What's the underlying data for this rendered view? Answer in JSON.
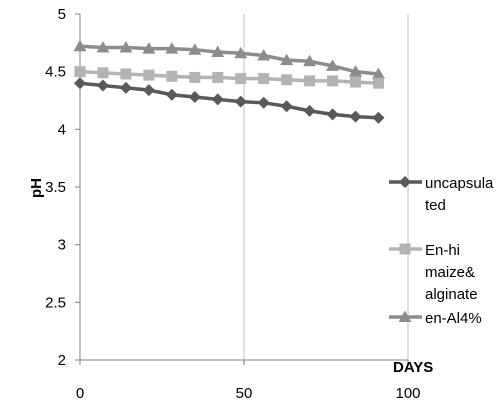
{
  "chart_data": {
    "type": "line",
    "xlabel": "DAYS",
    "ylabel": "pH",
    "xlim": [
      0,
      100
    ],
    "ylim": [
      2,
      5
    ],
    "x_ticks": [
      "0",
      "50",
      "100"
    ],
    "y_ticks": [
      "2",
      "2.5",
      "3",
      "3.5",
      "4",
      "4.5",
      "5"
    ],
    "grid": "vertical",
    "legend_position": "right",
    "x": [
      0,
      7,
      14,
      21,
      28,
      35,
      42,
      49,
      56,
      63,
      70,
      77,
      84,
      91
    ],
    "series": [
      {
        "name": "uncapsulated",
        "name_lines": [
          "uncapsula",
          "ted"
        ],
        "marker": "diamond",
        "color": "#595959",
        "values": [
          4.4,
          4.38,
          4.36,
          4.34,
          4.3,
          4.28,
          4.26,
          4.24,
          4.23,
          4.2,
          4.16,
          4.13,
          4.11,
          4.1
        ]
      },
      {
        "name": "En-hi maize& alginate",
        "name_lines": [
          "En-hi",
          "maize&",
          "alginate"
        ],
        "marker": "square",
        "color": "#b3b3b3",
        "values": [
          4.5,
          4.49,
          4.48,
          4.47,
          4.46,
          4.45,
          4.45,
          4.44,
          4.44,
          4.43,
          4.42,
          4.42,
          4.41,
          4.4
        ]
      },
      {
        "name": "en-Al4%",
        "name_lines": [
          "en-Al4%"
        ],
        "marker": "triangle",
        "color": "#8c8c8c",
        "values": [
          4.72,
          4.71,
          4.71,
          4.7,
          4.7,
          4.69,
          4.67,
          4.66,
          4.64,
          4.6,
          4.59,
          4.55,
          4.5,
          4.48
        ]
      }
    ]
  }
}
